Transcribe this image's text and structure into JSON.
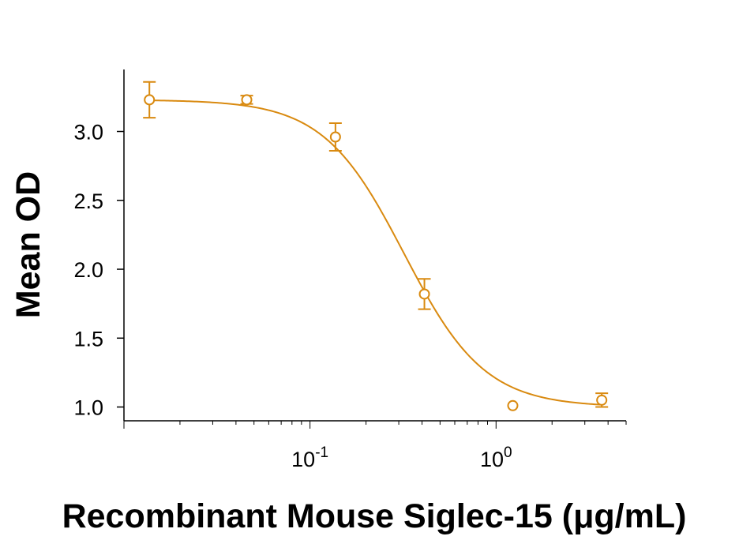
{
  "chart_data": {
    "type": "scatter",
    "title": "",
    "xlabel": "Recombinant Mouse Siglec-15 (μg/mL)",
    "ylabel": "Mean OD",
    "x_scale": "log",
    "xlim": [
      0.01,
      5.0
    ],
    "ylim": [
      0.9,
      3.45
    ],
    "y_ticks": [
      {
        "value": 1.0,
        "label": "1.0"
      },
      {
        "value": 1.5,
        "label": "1.5"
      },
      {
        "value": 2.0,
        "label": "2.0"
      },
      {
        "value": 2.5,
        "label": "2.5"
      },
      {
        "value": 3.0,
        "label": "3.0"
      }
    ],
    "x_ticks": [
      {
        "value": 0.1,
        "base": "10",
        "exponent": "-1"
      },
      {
        "value": 1.0,
        "base": "10",
        "exponent": "0"
      }
    ],
    "grid": false,
    "legend": "none",
    "color": "#D98A10",
    "points": [
      {
        "x": 0.0137,
        "y": 3.23,
        "err": 0.13
      },
      {
        "x": 0.0457,
        "y": 3.23,
        "err": 0.03
      },
      {
        "x": 0.137,
        "y": 2.96,
        "err": 0.1
      },
      {
        "x": 0.412,
        "y": 1.82,
        "err": 0.11
      },
      {
        "x": 1.23,
        "y": 1.01,
        "err": 0.0
      },
      {
        "x": 3.7,
        "y": 1.05,
        "err": 0.05
      }
    ],
    "fit_curve": {
      "model": "4PL",
      "top": 3.23,
      "bottom": 1.0,
      "ec50": 0.32,
      "hill": 2.0
    }
  }
}
